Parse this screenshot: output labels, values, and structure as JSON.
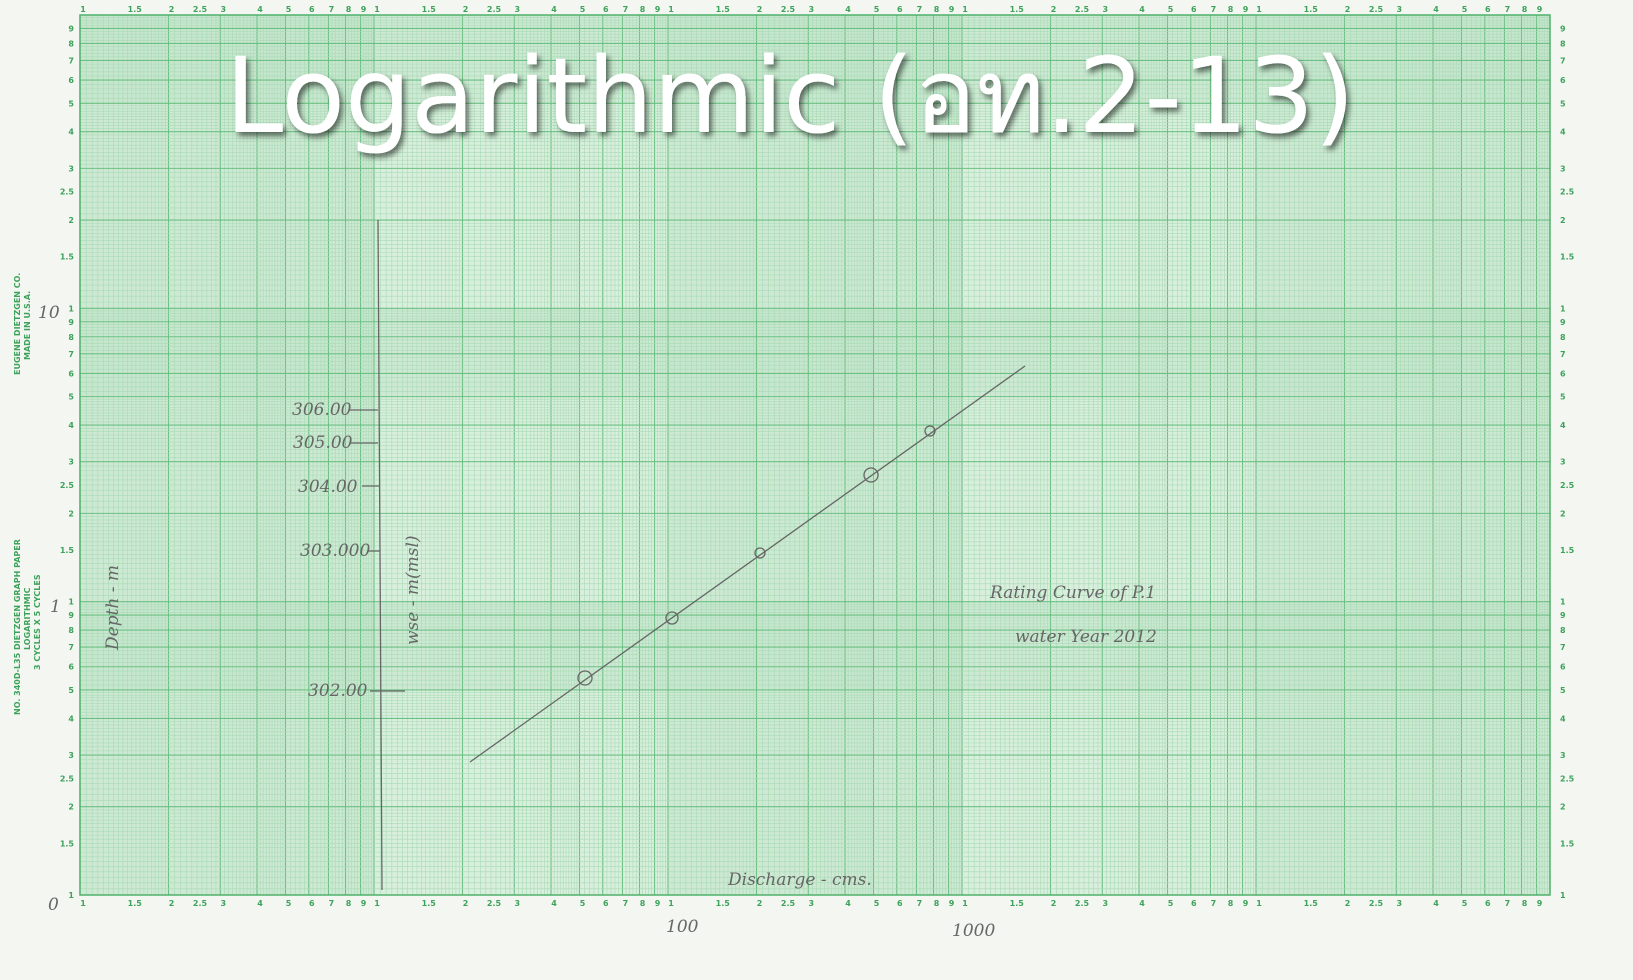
{
  "title": "Logarithmic (อท.2-13)",
  "paper": {
    "maker": "EUGENE DIETZGEN CO.",
    "made_in": "MADE IN U.S.A.",
    "product": "NO. 340D-L35 DIETZGEN GRAPH PAPER",
    "kind": "LOGARITHMIC",
    "cycles": "3 CYCLES X 5 CYCLES",
    "scale_labels": [
      "1",
      "1.5",
      "2",
      "2.5",
      "3",
      "4",
      "5",
      "6",
      "7",
      "8",
      "9"
    ]
  },
  "handwriting": {
    "y_labels": [
      "10",
      "1",
      "0"
    ],
    "x_labels": [
      "100",
      "1000"
    ],
    "depth_axis": "Depth - m",
    "wse_axis": "wse - m(msl)",
    "wse_ticks": [
      "306.00",
      "305.00",
      "304.00",
      "303.000",
      "302.00"
    ],
    "x_axis": "Discharge - cms.",
    "note_line1": "Rating Curve of P.1",
    "note_line2": "water Year 2012"
  }
}
